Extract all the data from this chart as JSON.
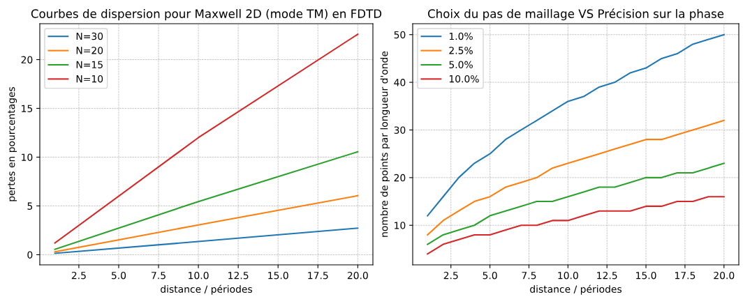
{
  "chart_data": [
    {
      "type": "line",
      "title": "Courbes de dispersion pour Maxwell 2D (mode TM) en FDTD",
      "xlabel": "distance / périodes",
      "ylabel": "pertes en pourcentages",
      "x": [
        1,
        10,
        20
      ],
      "series": [
        {
          "name": "N=30",
          "color": "#1f77b4",
          "values": [
            0.14,
            1.35,
            2.72
          ]
        },
        {
          "name": "N=20",
          "color": "#ff7f0e",
          "values": [
            0.3,
            3.05,
            6.05
          ]
        },
        {
          "name": "N=15",
          "color": "#2ca02c",
          "values": [
            0.55,
            5.45,
            10.55
          ]
        },
        {
          "name": "N=10",
          "color": "#d62728",
          "values": [
            1.2,
            12.0,
            22.6
          ]
        }
      ],
      "xlim": [
        0.05,
        20.95
      ],
      "ylim": [
        -1.04,
        23.68
      ],
      "xticks": [
        {
          "value": 2.5,
          "label": "2.5"
        },
        {
          "value": 5,
          "label": "5.0"
        },
        {
          "value": 7.5,
          "label": "7.5"
        },
        {
          "value": 10,
          "label": "10.0"
        },
        {
          "value": 12.5,
          "label": "12.5"
        },
        {
          "value": 15,
          "label": "15.0"
        },
        {
          "value": 17.5,
          "label": "17.5"
        },
        {
          "value": 20,
          "label": "20.0"
        }
      ],
      "yticks": [
        0,
        5,
        10,
        15,
        20
      ],
      "grid": true,
      "legend": "top left",
      "line_style": "solid"
    },
    {
      "type": "line",
      "title": "Choix du pas de maillage VS Précision sur la phase",
      "xlabel": "distance / périodes",
      "ylabel": "nombre de points par longueur d'onde",
      "x": [
        1,
        2,
        3,
        4,
        5,
        6,
        7,
        8,
        9,
        10,
        11,
        12,
        13,
        14,
        15,
        16,
        17,
        18,
        19,
        20
      ],
      "series": [
        {
          "name": "1.0%",
          "color": "#1f77b4",
          "values": [
            12,
            16,
            20,
            23,
            25,
            28,
            30,
            32,
            34,
            36,
            37,
            39,
            40,
            42,
            43,
            45,
            46,
            48,
            49,
            50
          ]
        },
        {
          "name": "2.5%",
          "color": "#ff7f0e",
          "values": [
            8,
            11,
            13,
            15,
            16,
            18,
            19,
            20,
            22,
            23,
            24,
            25,
            26,
            27,
            28,
            28,
            29,
            30,
            31,
            32
          ]
        },
        {
          "name": "5.0%",
          "color": "#2ca02c",
          "values": [
            6,
            8,
            9,
            10,
            12,
            13,
            14,
            15,
            15,
            16,
            17,
            18,
            18,
            19,
            20,
            20,
            21,
            21,
            22,
            23
          ]
        },
        {
          "name": "10.0%",
          "color": "#d62728",
          "values": [
            4,
            6,
            7,
            8,
            8,
            9,
            10,
            10,
            11,
            11,
            12,
            13,
            13,
            13,
            14,
            14,
            15,
            15,
            16,
            16
          ]
        }
      ],
      "xlim": [
        0.05,
        20.95
      ],
      "ylim": [
        1.7,
        52.3
      ],
      "xticks": [
        {
          "value": 2.5,
          "label": "2.5"
        },
        {
          "value": 5,
          "label": "5.0"
        },
        {
          "value": 7.5,
          "label": "7.5"
        },
        {
          "value": 10,
          "label": "10.0"
        },
        {
          "value": 12.5,
          "label": "12.5"
        },
        {
          "value": 15,
          "label": "15.0"
        },
        {
          "value": 17.5,
          "label": "17.5"
        },
        {
          "value": 20,
          "label": "20.0"
        }
      ],
      "yticks": [
        10,
        20,
        30,
        40,
        50
      ],
      "grid": true,
      "legend": "top left",
      "line_style": "solid"
    }
  ]
}
